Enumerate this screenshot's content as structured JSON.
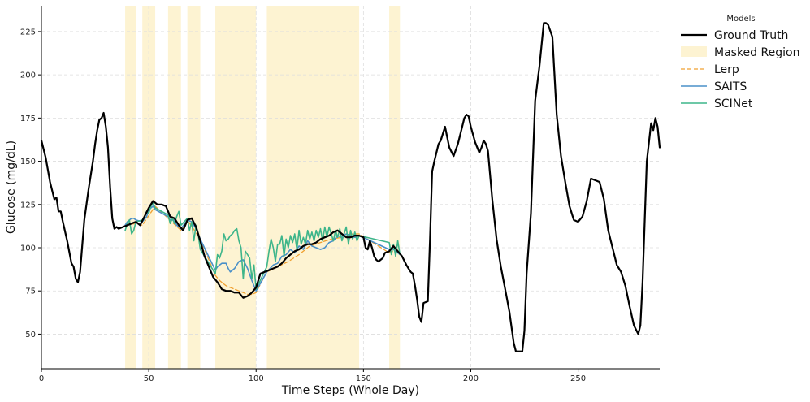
{
  "chart_data": {
    "type": "line",
    "title": "",
    "xlabel": "Time Steps (Whole Day)",
    "ylabel": "Glucose (mg/dL)",
    "xlim": [
      0,
      288
    ],
    "ylim": [
      30,
      240
    ],
    "xticks": [
      0,
      50,
      100,
      150,
      200,
      250
    ],
    "yticks": [
      50,
      75,
      100,
      125,
      150,
      175,
      200,
      225
    ],
    "grid": true,
    "legend": {
      "title": "Models",
      "placement": "outside-right",
      "entries": [
        "Ground Truth",
        "Masked Region",
        "Lerp",
        "SAITS",
        "SCINet"
      ]
    },
    "masked_regions": [
      [
        39,
        44
      ],
      [
        47,
        53
      ],
      [
        59,
        65
      ],
      [
        68,
        74
      ],
      [
        81,
        100
      ],
      [
        105,
        148
      ],
      [
        162,
        167
      ]
    ],
    "colors": {
      "ground_truth": "#000000",
      "masked": "#fdf3d2",
      "lerp": "#f0a030",
      "saits": "#4a90c8",
      "scinet": "#3db58a",
      "grid": "#dddddd"
    },
    "series": [
      {
        "name": "Ground Truth",
        "style": "solid",
        "x": [
          0,
          2,
          4,
          6,
          7,
          8,
          9,
          10,
          12,
          14,
          15,
          16,
          17,
          18,
          20,
          22,
          24,
          25,
          26,
          27,
          28,
          29,
          30,
          31,
          32,
          33,
          34,
          35,
          36,
          38,
          40,
          42,
          44,
          46,
          48,
          50,
          52,
          54,
          56,
          58,
          60,
          62,
          64,
          66,
          68,
          70,
          72,
          74,
          76,
          78,
          80,
          82,
          84,
          86,
          88,
          90,
          92,
          94,
          96,
          98,
          100,
          102,
          104,
          106,
          108,
          110,
          112,
          114,
          116,
          118,
          120,
          122,
          124,
          126,
          128,
          130,
          132,
          134,
          136,
          138,
          140,
          142,
          144,
          146,
          148,
          150,
          151,
          152,
          153,
          154,
          155,
          156,
          157,
          158,
          159,
          160,
          162,
          164,
          166,
          168,
          170,
          171,
          172,
          173,
          174,
          175,
          176,
          177,
          178,
          180,
          181,
          182,
          183,
          184,
          185,
          186,
          188,
          190,
          192,
          194,
          196,
          197,
          198,
          199,
          200,
          202,
          204,
          205,
          206,
          207,
          208,
          210,
          212,
          214,
          216,
          218,
          220,
          221,
          222,
          224,
          225,
          226,
          228,
          230,
          232,
          234,
          235,
          236,
          238,
          240,
          242,
          244,
          246,
          248,
          250,
          252,
          254,
          256,
          258,
          260,
          262,
          264,
          266,
          268,
          270,
          272,
          274,
          276,
          278,
          279,
          280,
          282,
          284,
          285,
          286,
          287,
          288
        ],
        "y": [
          162,
          152,
          138,
          128,
          129,
          121,
          121,
          115,
          104,
          91,
          89,
          82,
          80,
          86,
          116,
          134,
          150,
          160,
          168,
          174,
          175,
          178,
          170,
          158,
          135,
          117,
          111,
          112,
          111,
          112,
          113,
          114,
          115,
          113,
          118,
          123,
          127,
          125,
          125,
          124,
          118,
          117,
          113,
          110,
          116,
          117,
          112,
          104,
          95,
          89,
          83,
          80,
          76,
          75,
          75,
          74,
          74,
          71,
          72,
          74,
          77,
          85,
          86,
          87,
          88,
          89,
          91,
          94,
          96,
          98,
          99,
          101,
          102,
          102,
          103,
          105,
          106,
          107,
          109,
          110,
          108,
          106,
          106,
          107,
          107,
          106,
          100,
          99,
          104,
          100,
          95,
          93,
          92,
          93,
          94,
          97,
          98,
          101,
          98,
          95,
          90,
          88,
          86,
          85,
          78,
          70,
          60,
          57,
          68,
          69,
          105,
          144,
          150,
          155,
          160,
          162,
          170,
          158,
          153,
          160,
          170,
          175,
          177,
          176,
          170,
          161,
          155,
          158,
          162,
          160,
          156,
          128,
          105,
          89,
          76,
          63,
          45,
          40,
          40,
          40,
          52,
          85,
          120,
          185,
          205,
          230,
          230,
          229,
          222,
          177,
          153,
          138,
          124,
          116,
          115,
          118,
          127,
          140,
          139,
          138,
          128,
          110,
          100,
          90,
          86,
          78,
          66,
          55,
          50,
          55,
          80,
          150,
          172,
          168,
          175,
          170,
          158
        ]
      },
      {
        "name": "Lerp",
        "style": "dashed",
        "x": [
          39,
          44,
          47,
          53,
          59,
          65,
          68,
          74,
          81,
          83,
          86,
          88,
          90,
          92,
          94,
          96,
          98,
          100,
          105,
          110,
          115,
          120,
          125,
          130,
          135,
          140,
          145,
          148,
          162,
          164,
          167
        ],
        "y": [
          113,
          114,
          113,
          124,
          117,
          110,
          116,
          105,
          84,
          81,
          78,
          77,
          76,
          75,
          74,
          73,
          73,
          74,
          86,
          89,
          92,
          96,
          101,
          103,
          105,
          106,
          108,
          108,
          97,
          98,
          97
        ]
      },
      {
        "name": "SAITS",
        "style": "solid",
        "x": [
          39,
          40,
          42,
          43,
          44,
          47,
          49,
          50,
          52,
          53,
          59,
          60,
          62,
          63,
          65,
          68,
          70,
          72,
          74,
          81,
          82,
          84,
          86,
          87,
          88,
          90,
          92,
          94,
          96,
          98,
          100,
          105,
          108,
          110,
          112,
          114,
          116,
          118,
          120,
          122,
          124,
          126,
          128,
          130,
          132,
          134,
          136,
          138,
          140,
          142,
          144,
          146,
          148,
          162,
          163,
          165,
          167
        ],
        "y": [
          113,
          115,
          117,
          117,
          116,
          115,
          118,
          122,
          124,
          122,
          118,
          116,
          116,
          113,
          111,
          116,
          115,
          111,
          105,
          87,
          89,
          91,
          91,
          88,
          86,
          88,
          92,
          93,
          88,
          81,
          75,
          86,
          90,
          91,
          95,
          96,
          99,
          97,
          101,
          99,
          104,
          101,
          100,
          99,
          100,
          103,
          104,
          107,
          106,
          108,
          107,
          106,
          107,
          99,
          100,
          98,
          96
        ]
      },
      {
        "name": "SCINet",
        "style": "solid",
        "x": [
          39,
          40,
          41,
          42,
          43,
          44,
          47,
          48,
          49,
          50,
          51,
          52,
          53,
          59,
          60,
          61,
          62,
          63,
          64,
          65,
          68,
          69,
          70,
          71,
          72,
          73,
          74,
          81,
          82,
          83,
          84,
          85,
          86,
          87,
          88,
          89,
          90,
          91,
          92,
          93,
          94,
          95,
          96,
          97,
          98,
          99,
          100,
          105,
          106,
          107,
          108,
          109,
          110,
          111,
          112,
          113,
          114,
          115,
          116,
          117,
          118,
          119,
          120,
          121,
          122,
          123,
          124,
          125,
          126,
          127,
          128,
          129,
          130,
          131,
          132,
          133,
          134,
          135,
          136,
          137,
          138,
          139,
          140,
          141,
          142,
          143,
          144,
          145,
          146,
          147,
          148,
          162,
          163,
          164,
          165,
          166,
          167
        ],
        "y": [
          110,
          114,
          116,
          108,
          110,
          115,
          116,
          118,
          121,
          120,
          124,
          126,
          123,
          119,
          114,
          117,
          114,
          118,
          121,
          113,
          117,
          110,
          115,
          104,
          113,
          108,
          99,
          85,
          96,
          94,
          98,
          108,
          104,
          105,
          107,
          108,
          110,
          111,
          104,
          100,
          82,
          98,
          96,
          94,
          82,
          90,
          76,
          89,
          98,
          105,
          100,
          92,
          102,
          102,
          107,
          95,
          105,
          100,
          107,
          103,
          108,
          99,
          110,
          102,
          106,
          102,
          110,
          105,
          109,
          104,
          110,
          106,
          111,
          104,
          112,
          106,
          112,
          108,
          104,
          110,
          106,
          111,
          104,
          108,
          112,
          102,
          110,
          105,
          109,
          104,
          107,
          103,
          96,
          102,
          95,
          104,
          96
        ]
      }
    ]
  }
}
